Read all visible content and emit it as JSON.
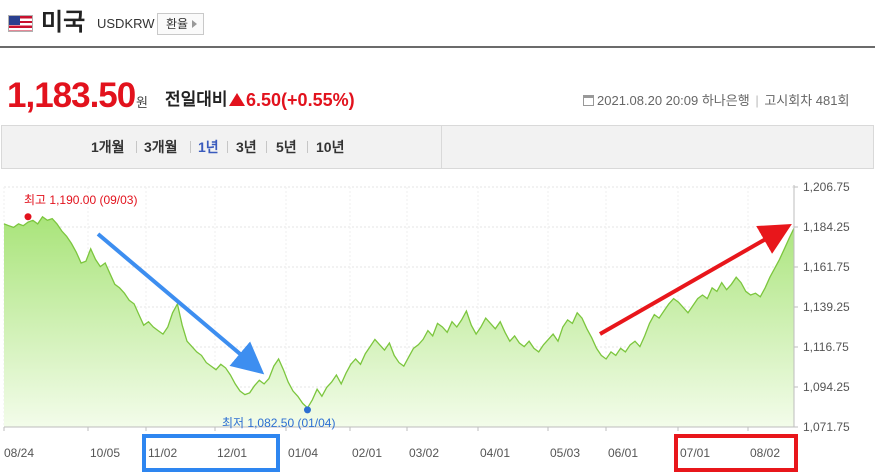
{
  "header": {
    "country": "미국",
    "code": "USDKRW",
    "rate_button_label": "환율"
  },
  "quote": {
    "price": "1,183.50",
    "unit": "원",
    "compare_label": "전일대비",
    "change": "6.50",
    "change_pct": "(+0.55%)",
    "direction": "up",
    "timestamp": "2021.08.20 20:09",
    "bank": "하나은행",
    "notice": "고시회차 481회"
  },
  "periods": [
    {
      "label": "1개월",
      "active": false
    },
    {
      "label": "3개월",
      "active": false
    },
    {
      "label": "1년",
      "active": true
    },
    {
      "label": "3년",
      "active": false
    },
    {
      "label": "5년",
      "active": false
    },
    {
      "label": "10년",
      "active": false
    }
  ],
  "colors": {
    "price_red": "#e2121d",
    "active_tab": "#3a5bbd",
    "line": "#7cc63e",
    "fill_top": "#a9e47a",
    "fill_bottom": "#f3fcea",
    "arrow_blue": "#3d8ef0",
    "arrow_red": "#e8161b",
    "box_blue": "#2e86f0",
    "box_red": "#e8161b"
  },
  "chart_data": {
    "type": "area",
    "title": "",
    "xlabel": "",
    "ylabel": "",
    "ylim": [
      1071.75,
      1206.75
    ],
    "yticks": [
      1206.75,
      1184.25,
      1161.75,
      1139.25,
      1116.75,
      1094.25,
      1071.75
    ],
    "ytick_labels": [
      "1,206.75",
      "1,184.25",
      "1,161.75",
      "1,139.25",
      "1,116.75",
      "1,094.25",
      "1,071.75"
    ],
    "xtick_labels": [
      "08/24",
      "10/05",
      "11/02",
      "12/01",
      "01/04",
      "02/01",
      "03/02",
      "04/01",
      "05/03",
      "06/01",
      "07/01",
      "08/02"
    ],
    "max_annotation": {
      "label": "최고",
      "value": "1,190.00",
      "date": "(09/03)"
    },
    "min_annotation": {
      "label": "최저",
      "value": "1,082.50",
      "date": "(01/04)"
    },
    "highlight_ranges": [
      {
        "from": "11/02",
        "to": "12/01",
        "color": "blue"
      },
      {
        "from": "07/01",
        "to": "08/02",
        "color": "red"
      }
    ],
    "series": [
      {
        "values": [
          1186,
          1185,
          1184,
          1186,
          1185,
          1187,
          1188,
          1186,
          1190,
          1188,
          1189,
          1186,
          1182,
          1179,
          1175,
          1170,
          1164,
          1165,
          1172,
          1166,
          1162,
          1164,
          1158,
          1152,
          1150,
          1147,
          1143,
          1141,
          1135,
          1129,
          1131,
          1128,
          1126,
          1124,
          1128,
          1136,
          1141,
          1129,
          1120,
          1117,
          1114,
          1112,
          1108,
          1106,
          1104,
          1107,
          1105,
          1101,
          1096,
          1092,
          1090,
          1091,
          1095,
          1098,
          1096,
          1099,
          1106,
          1110,
          1104,
          1097,
          1092,
          1089,
          1085,
          1082.5,
          1087,
          1093,
          1089,
          1094,
          1097,
          1101,
          1096,
          1102,
          1107,
          1110,
          1107,
          1113,
          1117,
          1121,
          1118,
          1115,
          1119,
          1112,
          1108,
          1106,
          1111,
          1116,
          1118,
          1121,
          1126,
          1123,
          1130,
          1128,
          1125,
          1131,
          1128,
          1132,
          1137,
          1129,
          1124,
          1128,
          1133,
          1130,
          1127,
          1131,
          1125,
          1120,
          1123,
          1119,
          1117,
          1120,
          1116,
          1114,
          1118,
          1121,
          1124,
          1120,
          1128,
          1132,
          1130,
          1136,
          1133,
          1127,
          1122,
          1116,
          1112,
          1110,
          1114,
          1112,
          1116,
          1114,
          1118,
          1120,
          1117,
          1123,
          1130,
          1135,
          1133,
          1137,
          1141,
          1144,
          1142,
          1139,
          1136,
          1140,
          1144,
          1146,
          1144,
          1150,
          1148,
          1153,
          1149,
          1152,
          1156,
          1153,
          1148,
          1146,
          1147,
          1145,
          1150,
          1156,
          1161,
          1166,
          1172,
          1178,
          1183.5
        ]
      }
    ]
  }
}
